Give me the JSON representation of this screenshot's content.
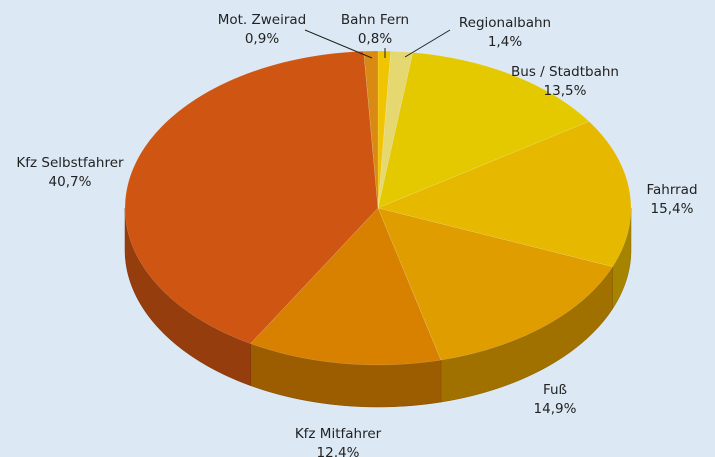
{
  "chart_data": {
    "type": "pie",
    "categories": [
      "Bahn Fern",
      "Regionalbahn",
      "Bus / Stadtbahn",
      "Fahrrad",
      "Fuß",
      "Kfz Mitfahrer",
      "Kfz Selbstfahrer",
      "Mot. Zweirad"
    ],
    "values": [
      0.8,
      1.4,
      13.5,
      15.4,
      14.9,
      12.4,
      40.7,
      0.9
    ],
    "value_labels": [
      "0,8%",
      "1,4%",
      "13,5%",
      "15,4%",
      "14,9%",
      "12,4%",
      "40,7%",
      "0,9%"
    ],
    "colors": [
      "#f0c400",
      "#e6d870",
      "#e4c900",
      "#e6b800",
      "#e09d00",
      "#d88000",
      "#cf5512",
      "#d98a12"
    ]
  }
}
